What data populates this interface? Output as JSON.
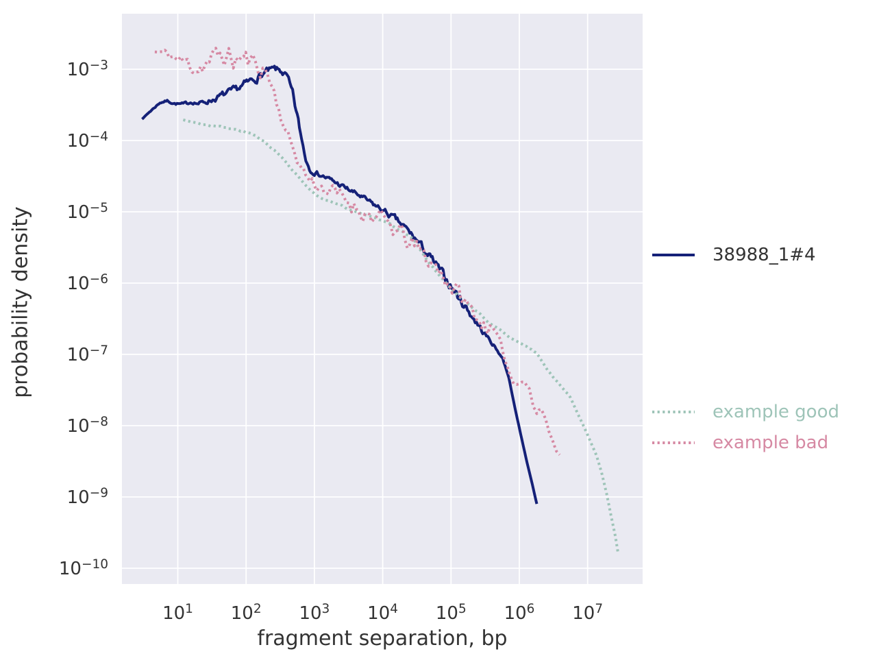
{
  "figure": {
    "xlabel": "fragment separation, bp",
    "ylabel": "probability density"
  },
  "legend": {
    "entries": [
      {
        "label": "38988_1#4",
        "text_color": "#333333",
        "line_color": "#152178",
        "dash": "solid"
      },
      {
        "label": "example good",
        "text_color": "#9ec4b8",
        "line_color": "#9ec4b8",
        "dash": "dotted"
      },
      {
        "label": "example bad",
        "text_color": "#d689a3",
        "line_color": "#d689a3",
        "dash": "dotted"
      }
    ]
  },
  "chart_data": {
    "type": "line",
    "title": "",
    "xlabel": "fragment separation, bp",
    "ylabel": "probability density",
    "xscale": "log",
    "yscale": "log",
    "xlim": [
      1.5,
      65000000
    ],
    "ylim": [
      6e-11,
      0.006
    ],
    "x_ticks": [
      "10^1",
      "10^2",
      "10^3",
      "10^4",
      "10^5",
      "10^6",
      "10^7"
    ],
    "y_ticks": [
      "10^-3",
      "10^-4",
      "10^-5",
      "10^-6",
      "10^-7",
      "10^-8",
      "10^-9",
      "10^-10"
    ],
    "grid": true,
    "background": "#eaeaf2",
    "grid_color": "#ffffff",
    "legend_position": "right",
    "series": [
      {
        "name": "38988_1#4",
        "color": "#152178",
        "style": "solid",
        "line_width": 4,
        "seed": 7,
        "steps_per_decade": 55,
        "points": [
          [
            3,
            0.0002,
            0
          ],
          [
            4,
            0.00026,
            0.01
          ],
          [
            5.5,
            0.00034,
            0.01
          ],
          [
            7,
            0.00036,
            0.015
          ],
          [
            9,
            0.00033,
            0.015
          ],
          [
            12,
            0.00032,
            0.02
          ],
          [
            16,
            0.00035,
            0.02
          ],
          [
            20,
            0.00033,
            0.025
          ],
          [
            26,
            0.00035,
            0.03
          ],
          [
            34,
            0.00038,
            0.035
          ],
          [
            45,
            0.00043,
            0.04
          ],
          [
            60,
            0.00048,
            0.04
          ],
          [
            80,
            0.00055,
            0.045
          ],
          [
            110,
            0.00066,
            0.05
          ],
          [
            150,
            0.00078,
            0.05
          ],
          [
            200,
            0.00092,
            0.045
          ],
          [
            260,
            0.001,
            0.04
          ],
          [
            330,
            0.00094,
            0.04
          ],
          [
            400,
            0.00076,
            0.05
          ],
          [
            480,
            0.00043,
            0.06
          ],
          [
            560,
            0.00022,
            0.05
          ],
          [
            650,
            0.000105,
            0.04
          ],
          [
            750,
            5.5e-05,
            0.035
          ],
          [
            850,
            4e-05,
            0.03
          ],
          [
            1000,
            3.6e-05,
            0.03
          ],
          [
            1400,
            3.1e-05,
            0.03
          ],
          [
            2000,
            2.6e-05,
            0.03
          ],
          [
            3000,
            2.1e-05,
            0.03
          ],
          [
            4500,
            1.7e-05,
            0.03
          ],
          [
            7000,
            1.3e-05,
            0.03
          ],
          [
            10000,
            1.05e-05,
            0.035
          ],
          [
            15000,
            8e-06,
            0.04
          ],
          [
            22000,
            5.8e-06,
            0.04
          ],
          [
            32000,
            3.9e-06,
            0.045
          ],
          [
            42000,
            2.8e-06,
            0.05
          ],
          [
            60000,
            1.8e-06,
            0.05
          ],
          [
            90000,
            1.05e-06,
            0.055
          ],
          [
            130000,
            6.3e-07,
            0.06
          ],
          [
            190000,
            3.8e-07,
            0.05
          ],
          [
            280000,
            2.2e-07,
            0.04
          ],
          [
            420000,
            1.35e-07,
            0.02
          ],
          [
            570000,
            8.8e-08,
            0.01
          ],
          [
            700000,
            4.8e-08,
            0.005
          ],
          [
            860000,
            1.8e-08,
            0
          ],
          [
            1050000,
            7.5e-09,
            0
          ],
          [
            1300000,
            3e-09,
            0
          ],
          [
            1550000,
            1.5e-09,
            0
          ],
          [
            1800000,
            8e-10,
            0
          ]
        ]
      },
      {
        "name": "example good",
        "color": "#9ec4b8",
        "style": "dotted",
        "line_width": 4,
        "seed": 3,
        "steps_per_decade": 26,
        "points": [
          [
            12,
            0.000195,
            0
          ],
          [
            20,
            0.000175,
            0.012
          ],
          [
            36,
            0.00016,
            0.012
          ],
          [
            60,
            0.000145,
            0.012
          ],
          [
            90,
            0.000135,
            0.012
          ],
          [
            140,
            0.000115,
            0.012
          ],
          [
            200,
            9.2e-05,
            0.012
          ],
          [
            280,
            6.8e-05,
            0.012
          ],
          [
            400,
            4.7e-05,
            0.012
          ],
          [
            600,
            3e-05,
            0.012
          ],
          [
            900,
            1.9e-05,
            0.012
          ],
          [
            1300,
            1.5e-05,
            0.012
          ],
          [
            1900,
            1.3e-05,
            0.012
          ],
          [
            2800,
            1.15e-05,
            0.012
          ],
          [
            4100,
            1e-05,
            0.012
          ],
          [
            6000,
            8.9e-06,
            0.012
          ],
          [
            8800,
            7.8e-06,
            0.012
          ],
          [
            13000,
            6.6e-06,
            0.012
          ],
          [
            19000,
            5.4e-06,
            0.012
          ],
          [
            28000,
            4e-06,
            0.012
          ],
          [
            42000,
            2.2e-06,
            0.012
          ],
          [
            60000,
            1.45e-06,
            0.012
          ],
          [
            75000,
            1.15e-06,
            0.012
          ],
          [
            110000,
            7.5e-07,
            0.012
          ],
          [
            190000,
            4.9e-07,
            0.012
          ],
          [
            420000,
            2.5e-07,
            0.012
          ],
          [
            890000,
            1.55e-07,
            0.012
          ],
          [
            1800000,
            1.05e-07,
            0.008
          ],
          [
            2600000,
            6e-08,
            0.008
          ],
          [
            5600000,
            2.5e-08,
            0.006
          ],
          [
            8300000,
            1.1e-08,
            0.004
          ],
          [
            11000000,
            6e-09,
            0
          ],
          [
            13500000,
            3.8e-09,
            0
          ],
          [
            16000000,
            2.2e-09,
            0
          ],
          [
            19000000,
            1.1e-09,
            0
          ],
          [
            22000000,
            5.5e-10,
            0
          ],
          [
            25500000,
            2.8e-10,
            0
          ],
          [
            28000000,
            1.6e-10,
            0
          ]
        ]
      },
      {
        "name": "example bad",
        "color": "#d689a3",
        "style": "dotted",
        "line_width": 4,
        "seed": 11,
        "steps_per_decade": 30,
        "points": [
          [
            4.6,
            0.00175,
            0.03
          ],
          [
            6,
            0.0017,
            0.05
          ],
          [
            8,
            0.00155,
            0.08
          ],
          [
            11,
            0.0013,
            0.1
          ],
          [
            15,
            0.00115,
            0.12
          ],
          [
            20,
            0.0011,
            0.13
          ],
          [
            27,
            0.0013,
            0.14
          ],
          [
            36,
            0.0014,
            0.15
          ],
          [
            48,
            0.0016,
            0.15
          ],
          [
            65,
            0.0013,
            0.16
          ],
          [
            85,
            0.0015,
            0.16
          ],
          [
            115,
            0.0012,
            0.15
          ],
          [
            150,
            0.00115,
            0.14
          ],
          [
            190,
            0.001,
            0.12
          ],
          [
            240,
            0.0006,
            0.09
          ],
          [
            300,
            0.00028,
            0.08
          ],
          [
            380,
            0.00014,
            0.07
          ],
          [
            480,
            8e-05,
            0.07
          ],
          [
            600,
            4.8e-05,
            0.07
          ],
          [
            800,
            3e-05,
            0.08
          ],
          [
            1000,
            2.5e-05,
            0.09
          ],
          [
            1500,
            2.1e-05,
            0.1
          ],
          [
            2300,
            1.65e-05,
            0.11
          ],
          [
            3500,
            1.3e-05,
            0.12
          ],
          [
            5500,
            1e-05,
            0.12
          ],
          [
            8000,
            8.2e-06,
            0.12
          ],
          [
            12000,
            6.4e-06,
            0.12
          ],
          [
            18000,
            4.8e-06,
            0.13
          ],
          [
            27000,
            3.4e-06,
            0.13
          ],
          [
            40000,
            2.4e-06,
            0.13
          ],
          [
            60000,
            1.7e-06,
            0.13
          ],
          [
            90000,
            1.1e-06,
            0.13
          ],
          [
            130000,
            7e-07,
            0.12
          ],
          [
            190000,
            4.3e-07,
            0.11
          ],
          [
            280000,
            2.8e-07,
            0.1
          ],
          [
            400000,
            2.3e-07,
            0.08
          ],
          [
            570000,
            1.1e-07,
            0.06
          ],
          [
            720000,
            5.5e-08,
            0.05
          ],
          [
            830000,
            3.9e-08,
            0.05
          ],
          [
            1000000,
            4.5e-08,
            0.05
          ],
          [
            1200000,
            4.4e-08,
            0.04
          ],
          [
            1400000,
            3.3e-08,
            0.04
          ],
          [
            1600000,
            1.9e-08,
            0.03
          ],
          [
            1800000,
            1.5e-08,
            0.03
          ],
          [
            2100000,
            1.7e-08,
            0.02
          ],
          [
            2400000,
            1.3e-08,
            0.02
          ],
          [
            2700000,
            8.5e-09,
            0.02
          ],
          [
            3100000,
            6e-09,
            0.01
          ],
          [
            3500000,
            4.5e-09,
            0.01
          ],
          [
            3900000,
            3.9e-09,
            0
          ]
        ]
      }
    ]
  }
}
